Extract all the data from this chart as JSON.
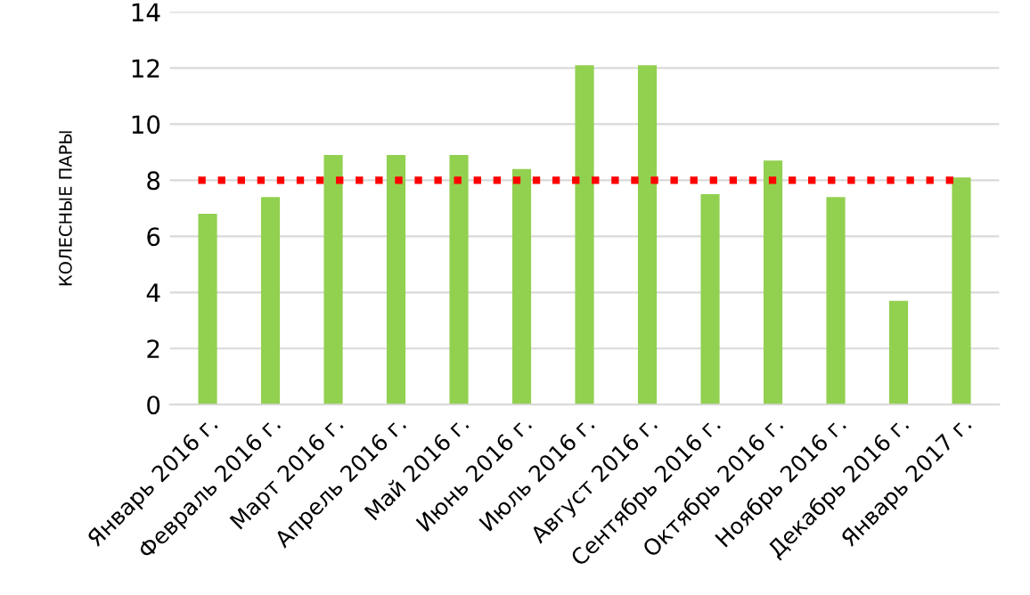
{
  "chart_data": {
    "type": "bar",
    "ylabel": "КОЛЕСНЫЕ ПАРЫ",
    "categories": [
      "Январь 2016 г.",
      "Февраль 2016 г.",
      "Март 2016 г.",
      "Апрель 2016 г.",
      "Май 2016 г.",
      "Июнь 2016 г.",
      "Июль 2016 г.",
      "Август 2016 г.",
      "Сентябрь 2016 г.",
      "Октябрь 2016 г.",
      "Ноябрь 2016 г.",
      "Декабрь 2016 г.",
      "Январь 2017 г."
    ],
    "values": [
      6.8,
      7.4,
      8.9,
      8.9,
      8.9,
      8.4,
      12.1,
      12.1,
      7.5,
      8.7,
      7.4,
      3.7,
      8.1
    ],
    "color": "#92d050",
    "ylim": [
      0,
      14
    ],
    "yticks": [
      0,
      2,
      4,
      6,
      8,
      10,
      12,
      14
    ],
    "grid": "y",
    "legend": false,
    "ref_lines": [
      {
        "axis": "y",
        "value": 8,
        "color": "#ff0000",
        "line_style": "dotted"
      }
    ]
  }
}
